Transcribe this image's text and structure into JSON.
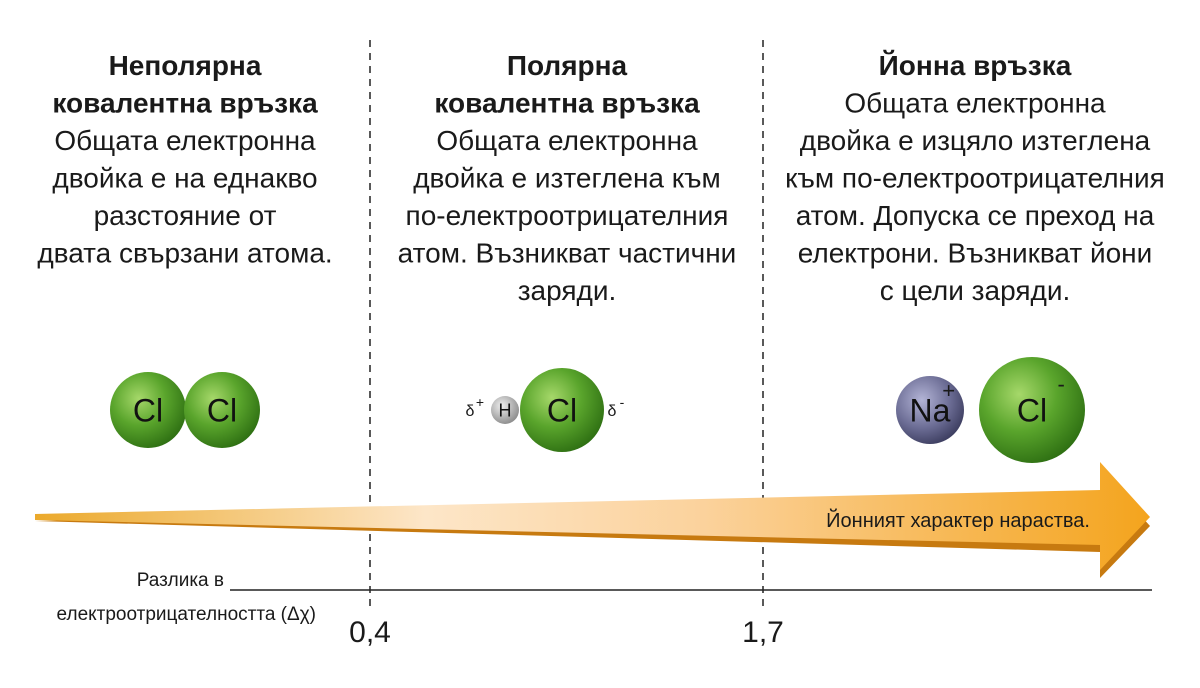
{
  "columns": [
    {
      "title": [
        "Неполярна",
        "ковалентна връзка"
      ],
      "description": [
        "Общата електронна",
        "двойка е на еднакво",
        "разстояние от",
        "двата свързани атома."
      ],
      "atoms": [
        {
          "symbol": "Cl"
        },
        {
          "symbol": "Cl"
        }
      ]
    },
    {
      "title": [
        "Полярна",
        "ковалентна връзка"
      ],
      "description": [
        "Общата електронна",
        "двойка е изтеглена към",
        "по-електроотрицателния",
        "атом. Възникват частични",
        "заряди."
      ],
      "partial_charges": [
        {
          "symbol": "δ",
          "charge": "+"
        },
        {
          "symbol": "δ",
          "charge": "-"
        }
      ],
      "atoms": [
        {
          "symbol": "H"
        },
        {
          "symbol": "Cl"
        }
      ]
    },
    {
      "title": [
        "Йонна връзка"
      ],
      "description": [
        "Общата електронна",
        "двойка е изцяло изтеглена",
        "към по-електроотрицателния",
        "атом. Допуска се преход на",
        "електрони. Възникват йони",
        "с цели заряди."
      ],
      "atoms": [
        {
          "symbol": "Na",
          "charge": "+"
        },
        {
          "symbol": "Cl",
          "charge": "-"
        }
      ]
    }
  ],
  "arrow_label": "Йонният характер нараства.",
  "axis": {
    "label": [
      "Разлика в",
      "електроотрицателността (Δχ)"
    ],
    "ticks": [
      "0,4",
      "1,7"
    ]
  }
}
